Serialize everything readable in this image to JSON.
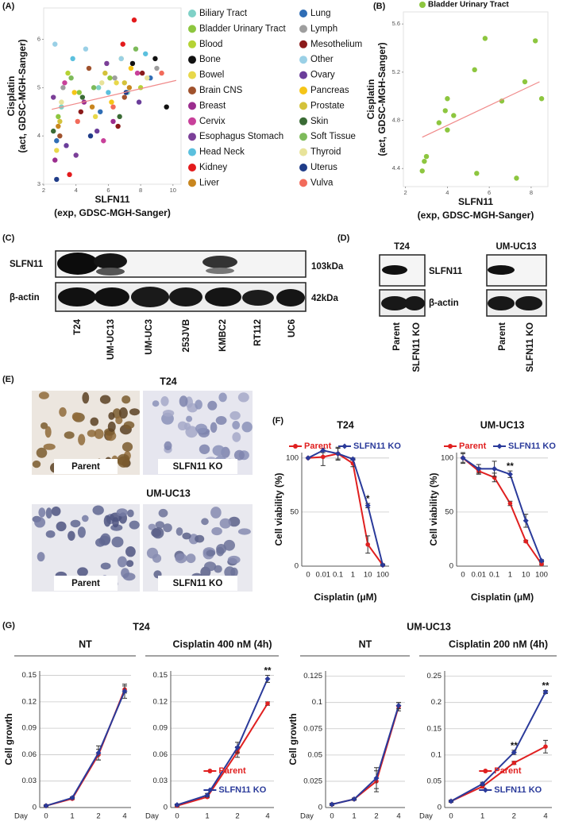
{
  "panel_labels": [
    "(A)",
    "(B)",
    "(C)",
    "(D)",
    "(E)",
    "(F)",
    "(G)"
  ],
  "blot_c": {
    "rows": [
      "SLFN11",
      "β-actin"
    ],
    "sizes": [
      "103kDa",
      "42kDa"
    ],
    "lanes": [
      "T24",
      "UM-UC13",
      "UM-UC3",
      "253JVB",
      "KMBC2",
      "RT112",
      "UC6"
    ]
  },
  "blot_d": {
    "groups": [
      "T24",
      "UM-UC13"
    ],
    "rows": [
      "SLFN11",
      "β-actin"
    ],
    "lanes": [
      "Parent",
      "SLFN11 KO",
      "Parent",
      "SLFN11 KO"
    ]
  },
  "ihc_e": {
    "groups": [
      "T24",
      "UM-UC13"
    ],
    "captions": [
      "Parent",
      "SLFN11 KO",
      "Parent",
      "SLFN11 KO"
    ]
  },
  "figure_g_groups": [
    "T24",
    "UM-UC13"
  ],
  "chart_data": [
    {
      "type": "scatter",
      "ylabel": [
        "Cisplatin",
        "(act, GDSC-MGH-Sanger)"
      ],
      "xlabel": [
        "SLFN11",
        "(exp, GDSC-MGH-Sanger)"
      ],
      "xlim": [
        2,
        10.5
      ],
      "xticks": [
        2,
        4,
        6,
        8,
        10
      ],
      "ylim": [
        3,
        6.65
      ],
      "yticks": [
        3,
        4,
        5,
        6
      ],
      "grid": false,
      "legend": "right",
      "trend": {
        "x": [
          2.5,
          10.2
        ],
        "y": [
          4.55,
          5.15
        ],
        "color": "#f08a8a"
      },
      "series": [
        {
          "name": "Biliary Tract",
          "color": "#7fd1c7",
          "x": [
            3.1,
            5.4,
            7.2
          ],
          "values": [
            4.6,
            5.0,
            4.9
          ]
        },
        {
          "name": "Bladder Urinary Tract",
          "color": "#8dc63f",
          "x": [
            2.9,
            4.2,
            6.1
          ],
          "values": [
            4.4,
            4.9,
            5.2
          ]
        },
        {
          "name": "Blood",
          "color": "#b5d334",
          "x": [
            3.5,
            6.8,
            8.0
          ],
          "values": [
            5.3,
            5.6,
            5.0
          ]
        },
        {
          "name": "Bone",
          "color": "#111111",
          "x": [
            7.5,
            8.9,
            9.6
          ],
          "values": [
            5.5,
            5.6,
            4.6
          ]
        },
        {
          "name": "Bowel",
          "color": "#e8d84a",
          "x": [
            2.8,
            5.2,
            6.5
          ],
          "values": [
            3.7,
            4.4,
            5.1
          ]
        },
        {
          "name": "Brain CNS",
          "color": "#a0522d",
          "x": [
            3.0,
            4.8,
            7.0
          ],
          "values": [
            4.0,
            5.4,
            4.8
          ]
        },
        {
          "name": "Breast",
          "color": "#9b2d8e",
          "x": [
            2.7,
            4.5,
            6.3
          ],
          "values": [
            3.5,
            4.7,
            4.3
          ]
        },
        {
          "name": "Cervix",
          "color": "#c8409a",
          "x": [
            3.3,
            5.7,
            7.8
          ],
          "values": [
            5.1,
            3.9,
            5.3
          ]
        },
        {
          "name": "Esophagus Stomach",
          "color": "#7b3f98",
          "x": [
            2.6,
            4.0,
            5.9
          ],
          "values": [
            4.8,
            3.6,
            5.5
          ]
        },
        {
          "name": "Head Neck",
          "color": "#5bc0de",
          "x": [
            3.8,
            6.0,
            8.3
          ],
          "values": [
            5.6,
            4.9,
            5.7
          ]
        },
        {
          "name": "Kidney",
          "color": "#e31a1c",
          "x": [
            3.6,
            6.9,
            7.6
          ],
          "values": [
            3.2,
            5.9,
            6.4
          ]
        },
        {
          "name": "Liver",
          "color": "#c8861f",
          "x": [
            2.9,
            5.0,
            7.3
          ],
          "values": [
            4.2,
            4.6,
            5.0
          ]
        },
        {
          "name": "Lung",
          "color": "#2f6db5",
          "x": [
            2.8,
            5.5,
            8.6
          ],
          "values": [
            3.9,
            4.5,
            5.2
          ]
        },
        {
          "name": "Lymph",
          "color": "#9e9e9e",
          "x": [
            3.2,
            6.4,
            9.0
          ],
          "values": [
            5.0,
            5.2,
            5.4
          ]
        },
        {
          "name": "Mesothelium",
          "color": "#8b1a1a",
          "x": [
            4.3,
            6.6,
            8.1
          ],
          "values": [
            4.5,
            4.2,
            5.3
          ]
        },
        {
          "name": "Other",
          "color": "#9ad0e6",
          "x": [
            2.7,
            4.6,
            6.8
          ],
          "values": [
            5.9,
            5.8,
            5.6
          ]
        },
        {
          "name": "Ovary",
          "color": "#6a3d9a",
          "x": [
            3.4,
            5.3,
            7.9
          ],
          "values": [
            3.8,
            4.1,
            4.7
          ]
        },
        {
          "name": "Pancreas",
          "color": "#f5c518",
          "x": [
            3.9,
            6.2,
            7.4
          ],
          "values": [
            4.9,
            4.7,
            5.4
          ]
        },
        {
          "name": "Prostate",
          "color": "#d4c23a",
          "x": [
            3.0,
            5.8,
            7.0
          ],
          "values": [
            4.3,
            5.3,
            5.1
          ]
        },
        {
          "name": "Skin",
          "color": "#3a6b35",
          "x": [
            2.6,
            4.4,
            6.7
          ],
          "values": [
            4.1,
            4.8,
            4.4
          ]
        },
        {
          "name": "Soft Tissue",
          "color": "#7dba5a",
          "x": [
            3.7,
            5.1,
            7.7
          ],
          "values": [
            5.2,
            5.0,
            5.8
          ]
        },
        {
          "name": "Thyroid",
          "color": "#e8e39a",
          "x": [
            3.1,
            5.6,
            8.4
          ],
          "values": [
            4.7,
            5.1,
            5.2
          ]
        },
        {
          "name": "Uterus",
          "color": "#1f3c88",
          "x": [
            2.8,
            4.9,
            7.1
          ],
          "values": [
            3.1,
            4.0,
            4.9
          ]
        },
        {
          "name": "Vulva",
          "color": "#f26b5b",
          "x": [
            4.1,
            6.3,
            9.3
          ],
          "values": [
            4.3,
            4.6,
            5.3
          ]
        }
      ]
    },
    {
      "type": "scatter",
      "ylabel": [
        "Cisplatin",
        "(act, GDSC-MGH-Sanger)"
      ],
      "xlabel": [
        "SLFN11",
        "(exp, GDSC-MGH-Sanger)"
      ],
      "xlim": [
        1.9,
        8.8
      ],
      "xticks": [
        2,
        4,
        6,
        8
      ],
      "ylim": [
        4.25,
        5.7
      ],
      "yticks": [
        4.4,
        4.8,
        5.2,
        5.6
      ],
      "grid": false,
      "legend": "top",
      "trend": {
        "x": [
          2.8,
          8.4
        ],
        "y": [
          4.66,
          5.12
        ],
        "color": "#f08a8a"
      },
      "series": [
        {
          "name": "Bladder Urinary Tract",
          "color": "#8dc63f",
          "x": [
            2.8,
            2.9,
            3.0,
            3.6,
            3.9,
            4.0,
            4.0,
            4.3,
            5.3,
            5.4,
            5.8,
            6.6,
            7.3,
            7.7,
            8.2,
            8.5
          ],
          "values": [
            4.38,
            4.46,
            4.5,
            4.78,
            4.88,
            4.72,
            4.98,
            4.84,
            5.22,
            4.36,
            5.48,
            4.96,
            4.32,
            5.12,
            5.46,
            4.98
          ]
        }
      ]
    },
    {
      "type": "line",
      "title": "T24",
      "ylabel": [
        "Cell viability (%)"
      ],
      "xlabel": [
        "Cisplatin (μM)"
      ],
      "legend": "top",
      "grid": true,
      "categories": [
        "0",
        "0.01",
        "0.1",
        "1",
        "10",
        "100"
      ],
      "ylim": [
        0,
        105
      ],
      "yticks": [
        0,
        50,
        100
      ],
      "series": [
        {
          "name": "Parent",
          "color": "#e02020",
          "values": [
            100,
            101,
            104,
            95,
            20,
            1
          ],
          "errors": [
            0,
            8,
            6,
            3,
            8,
            1
          ]
        },
        {
          "name": "SLFN11 KO",
          "color": "#2a3a9a",
          "values": [
            100,
            107,
            104,
            99,
            56,
            1
          ],
          "errors": [
            0,
            2,
            5,
            1,
            2,
            1
          ]
        }
      ],
      "annotations": [
        {
          "text": "*",
          "category": "10"
        }
      ]
    },
    {
      "type": "line",
      "title": "UM-UC13",
      "ylabel": [
        "Cell viability (%)"
      ],
      "xlabel": [
        "Cisplatin (μM)"
      ],
      "legend": "top",
      "grid": true,
      "categories": [
        "0",
        "0.01",
        "0.1",
        "1",
        "10",
        "100"
      ],
      "ylim": [
        0,
        105
      ],
      "yticks": [
        0,
        50,
        100
      ],
      "series": [
        {
          "name": "Parent",
          "color": "#e02020",
          "values": [
            100,
            88,
            82,
            58,
            23,
            2
          ],
          "errors": [
            5,
            3,
            4,
            2,
            1,
            1
          ]
        },
        {
          "name": "SLFN11 KO",
          "color": "#2a3a9a",
          "values": [
            100,
            90,
            90,
            85,
            42,
            5
          ],
          "errors": [
            4,
            4,
            7,
            3,
            6,
            1
          ]
        }
      ],
      "annotations": [
        {
          "text": "**",
          "category": "1"
        }
      ]
    },
    {
      "type": "line",
      "title": "NT",
      "ylabel": [
        "Cell growth"
      ],
      "xlabel": [
        "Day"
      ],
      "grid": true,
      "categories": [
        "0",
        "1",
        "2",
        "4"
      ],
      "ylim": [
        0,
        0.155
      ],
      "yticks": [
        0,
        0.03,
        0.06,
        0.09,
        0.12,
        0.15
      ],
      "series": [
        {
          "color": "#e02020",
          "values": [
            0.002,
            0.01,
            0.06,
            0.134
          ],
          "errors": [
            0.001,
            0.001,
            0.006,
            0.004
          ]
        },
        {
          "color": "#2a3a9a",
          "values": [
            0.002,
            0.011,
            0.062,
            0.132
          ],
          "errors": [
            0.001,
            0.001,
            0.008,
            0.008
          ]
        }
      ]
    },
    {
      "type": "line",
      "title": "Cisplatin 400 nM (4h)",
      "xlabel": [
        "Day"
      ],
      "grid": true,
      "legend": "lower right",
      "categories": [
        "0",
        "1",
        "2",
        "4"
      ],
      "ylim": [
        0,
        0.155
      ],
      "yticks": [
        0,
        0.03,
        0.06,
        0.09,
        0.12,
        0.15
      ],
      "series": [
        {
          "name": "Parent",
          "color": "#e02020",
          "values": [
            0.002,
            0.012,
            0.063,
            0.118
          ],
          "errors": [
            0.001,
            0.001,
            0.006,
            0.002
          ]
        },
        {
          "name": "SLFN11 KO",
          "color": "#2a3a9a",
          "values": [
            0.003,
            0.014,
            0.068,
            0.146
          ],
          "errors": [
            0.001,
            0.002,
            0.006,
            0.004
          ]
        }
      ],
      "annotations": [
        {
          "text": "**",
          "category": "4"
        }
      ]
    },
    {
      "type": "line",
      "title": "NT",
      "ylabel": [
        "Cell growth"
      ],
      "xlabel": [
        "Day"
      ],
      "grid": true,
      "categories": [
        "0",
        "1",
        "2",
        "4"
      ],
      "ylim": [
        0,
        0.13
      ],
      "yticks": [
        0,
        0.025,
        0.05,
        0.075,
        0.1,
        0.125
      ],
      "series": [
        {
          "color": "#e02020",
          "values": [
            0.003,
            0.008,
            0.025,
            0.096
          ],
          "errors": [
            0.001,
            0.001,
            0.01,
            0.004
          ]
        },
        {
          "color": "#2a3a9a",
          "values": [
            0.003,
            0.008,
            0.028,
            0.097
          ],
          "errors": [
            0.001,
            0.001,
            0.01,
            0.003
          ]
        }
      ]
    },
    {
      "type": "line",
      "title": "Cisplatin 200 nM (4h)",
      "xlabel": [
        "Day"
      ],
      "grid": true,
      "legend": "lower right",
      "categories": [
        "0",
        "1",
        "2",
        "4"
      ],
      "ylim": [
        0,
        0.26
      ],
      "yticks": [
        0,
        0.05,
        0.1,
        0.15,
        0.2,
        0.25
      ],
      "series": [
        {
          "name": "Parent",
          "color": "#e02020",
          "values": [
            0.012,
            0.04,
            0.085,
            0.116
          ],
          "errors": [
            0.002,
            0.003,
            0.003,
            0.012
          ]
        },
        {
          "name": "SLFN11 KO",
          "color": "#2a3a9a",
          "values": [
            0.012,
            0.045,
            0.105,
            0.22
          ],
          "errors": [
            0.002,
            0.003,
            0.004,
            0.003
          ]
        }
      ],
      "annotations": [
        {
          "text": "**",
          "category": "2"
        },
        {
          "text": "**",
          "category": "4"
        }
      ]
    }
  ]
}
